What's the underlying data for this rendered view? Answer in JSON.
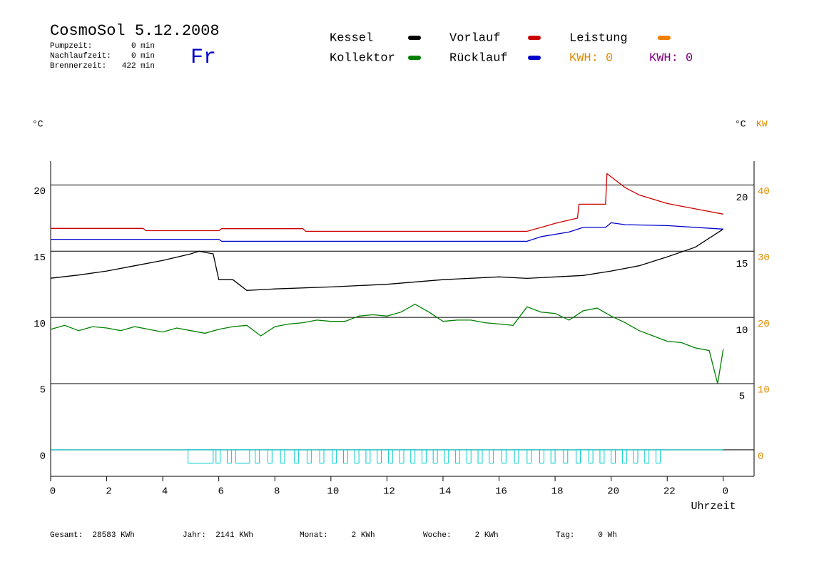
{
  "header": {
    "title": "CosmoSol 5.12.2008",
    "stats": [
      {
        "label": "Pumpzeit:",
        "value": "0 min"
      },
      {
        "label": "Nachlaufzeit:",
        "value": "0 min"
      },
      {
        "label": "Brennerzeit:",
        "value": "422 min"
      }
    ],
    "day": "Fr"
  },
  "footer": [
    "Gesamt:  28583 KWh",
    "Jahr:  2141 KWh",
    "Monat:     2 KWh",
    "Woche:     2 KWh",
    "Tag:     0 Wh"
  ],
  "chart_data": {
    "type": "line",
    "ylabel": "°C",
    "y2label_left": "°C",
    "y2label": "KW",
    "xlabel": "Uhrzeit",
    "xlim": [
      0,
      25.1
    ],
    "xticks": [
      0,
      2,
      4,
      6,
      8,
      10,
      12,
      14,
      16,
      18,
      20,
      22,
      {
        "value": 24,
        "label": "0"
      }
    ],
    "ylim": [
      -2,
      21.8
    ],
    "yticks": [
      0,
      5,
      10,
      15,
      20
    ],
    "y2lim": [
      -4,
      43.6
    ],
    "y2ticks": [
      0,
      10,
      20,
      30,
      40
    ],
    "grid": true,
    "kwh_labels": [
      {
        "text": "KWH: 0",
        "color": "#e08a00"
      },
      {
        "text": "KWH: 0",
        "color": "#800080"
      }
    ],
    "series": [
      {
        "name": "Kessel",
        "color": "#000000",
        "x": [
          0,
          1,
          2,
          3,
          4,
          5,
          5.3,
          5.8,
          6,
          6.5,
          7,
          8,
          10,
          12,
          14,
          16,
          17,
          19,
          20,
          21,
          22,
          23,
          24
        ],
        "values": [
          12.96,
          13.2,
          13.5,
          13.9,
          14.3,
          14.8,
          15.0,
          14.8,
          12.85,
          12.85,
          12.04,
          12.15,
          12.3,
          12.5,
          12.85,
          13.06,
          12.95,
          13.17,
          13.5,
          13.9,
          14.57,
          15.3,
          16.67
        ]
      },
      {
        "name": "Kollektor",
        "color": "#008000",
        "x": [
          0,
          0.5,
          1,
          1.5,
          2,
          2.5,
          3,
          3.5,
          4,
          4.5,
          5,
          5.5,
          6,
          6.5,
          7,
          7.5,
          8,
          8.5,
          9,
          9.5,
          10,
          10.5,
          11,
          11.5,
          12,
          12.5,
          13,
          13.5,
          14,
          14.5,
          15,
          15.5,
          16,
          16.5,
          17,
          17.5,
          18,
          18.5,
          19,
          19.5,
          20,
          20.5,
          21,
          21.5,
          22,
          22.5,
          23,
          23.5,
          23.8,
          24
        ],
        "values": [
          9.1,
          9.4,
          9.0,
          9.3,
          9.2,
          9.0,
          9.3,
          9.1,
          8.9,
          9.2,
          9.0,
          8.8,
          9.1,
          9.3,
          9.4,
          8.6,
          9.3,
          9.5,
          9.6,
          9.8,
          9.7,
          9.7,
          10.1,
          10.2,
          10.1,
          10.4,
          11.0,
          10.4,
          9.7,
          9.8,
          9.8,
          9.6,
          9.5,
          9.4,
          10.8,
          10.4,
          10.3,
          9.8,
          10.5,
          10.7,
          10.1,
          9.6,
          9.0,
          8.6,
          8.2,
          8.1,
          7.7,
          7.5,
          5.0,
          7.6
        ]
      },
      {
        "name": "Vorlauf",
        "color": "#cc0000",
        "x": [
          0,
          3.3,
          3.4,
          6,
          6.1,
          9,
          9.1,
          17,
          17.5,
          18,
          18.8,
          18.85,
          19.8,
          19.85,
          20.5,
          21,
          22,
          23,
          24
        ],
        "values": [
          16.72,
          16.72,
          16.55,
          16.55,
          16.7,
          16.7,
          16.5,
          16.5,
          16.8,
          17.1,
          17.5,
          18.55,
          18.55,
          20.86,
          19.8,
          19.25,
          18.6,
          18.2,
          17.8
        ]
      },
      {
        "name": "Rücklauf",
        "color": "#0000cc",
        "x": [
          0,
          6,
          6.1,
          17,
          17.5,
          18.5,
          19,
          19.8,
          20,
          20.5,
          22,
          24
        ],
        "values": [
          15.9,
          15.9,
          15.75,
          15.75,
          16.1,
          16.45,
          16.8,
          16.8,
          17.15,
          17.0,
          16.93,
          16.67
        ]
      },
      {
        "name": "Leistung",
        "color": "#f08000",
        "axis": "y2",
        "x": [],
        "values": []
      }
    ],
    "pulse_color": "#00cccc",
    "pulse_level": -1,
    "pulses": [
      [
        4.9,
        5.8
      ],
      [
        5.9,
        6.05
      ],
      [
        6.3,
        6.45
      ],
      [
        6.6,
        7.1
      ],
      [
        7.3,
        7.45
      ],
      [
        7.75,
        7.9
      ],
      [
        8.2,
        8.35
      ],
      [
        8.7,
        8.85
      ],
      [
        9.15,
        9.3
      ],
      [
        9.6,
        9.75
      ],
      [
        10.05,
        10.2
      ],
      [
        10.45,
        10.6
      ],
      [
        10.85,
        11.0
      ],
      [
        11.25,
        11.4
      ],
      [
        11.65,
        11.8
      ],
      [
        12.05,
        12.2
      ],
      [
        12.45,
        12.6
      ],
      [
        12.85,
        13.0
      ],
      [
        13.25,
        13.4
      ],
      [
        13.65,
        13.8
      ],
      [
        14.05,
        14.2
      ],
      [
        14.45,
        14.6
      ],
      [
        14.85,
        15.0
      ],
      [
        15.25,
        15.4
      ],
      [
        15.65,
        15.8
      ],
      [
        16.1,
        16.25
      ],
      [
        16.55,
        16.7
      ],
      [
        17.0,
        17.15
      ],
      [
        17.45,
        17.6
      ],
      [
        17.85,
        18.0
      ],
      [
        18.3,
        18.45
      ],
      [
        18.75,
        18.9
      ],
      [
        19.2,
        19.35
      ],
      [
        19.6,
        19.75
      ],
      [
        20.0,
        20.15
      ],
      [
        20.4,
        20.55
      ],
      [
        20.8,
        20.95
      ],
      [
        21.2,
        21.35
      ],
      [
        21.6,
        21.75
      ]
    ]
  }
}
